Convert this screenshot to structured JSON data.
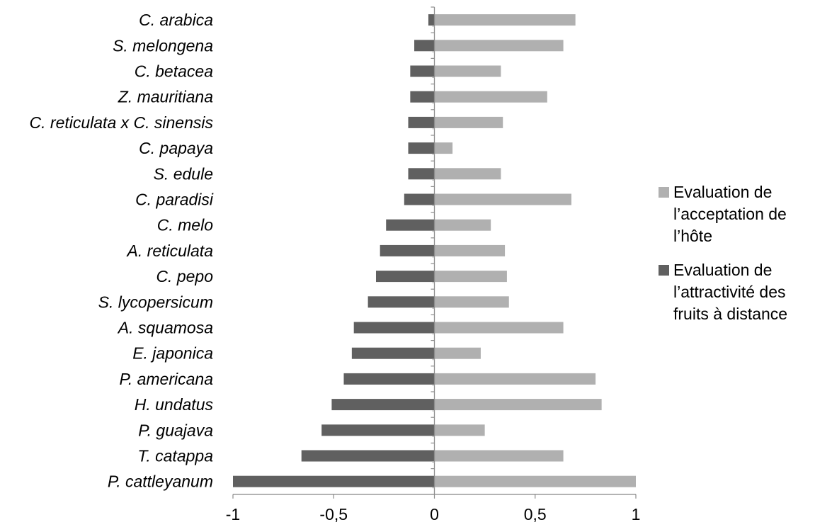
{
  "chart_data": {
    "type": "bar",
    "orientation": "horizontal",
    "categories": [
      "C. arabica",
      "S. melongena",
      "C. betacea",
      "Z. mauritiana",
      "C. reticulata x C. sinensis",
      "C. papaya",
      "S. edule",
      "C. paradisi",
      "C. melo",
      "A. reticulata",
      "C. pepo",
      "S. lycopersicum",
      "A. squamosa",
      "E. japonica",
      "P. americana",
      "H. undatus",
      "P. guajava",
      "T. catappa",
      "P. cattleyanum"
    ],
    "series": [
      {
        "name": "Evaluation de l’acceptation de l’hôte",
        "color": "#b0b0b0",
        "values": [
          0.7,
          0.64,
          0.33,
          0.56,
          0.34,
          0.09,
          0.33,
          0.68,
          0.28,
          0.35,
          0.36,
          0.37,
          0.64,
          0.23,
          0.8,
          0.83,
          0.25,
          0.64,
          1.0
        ]
      },
      {
        "name": "Evaluation de l’attractivité des fruits à distance",
        "color": "#606060",
        "values": [
          -0.03,
          -0.1,
          -0.12,
          -0.12,
          -0.13,
          -0.13,
          -0.13,
          -0.15,
          -0.24,
          -0.27,
          -0.29,
          -0.33,
          -0.4,
          -0.41,
          -0.45,
          -0.51,
          -0.56,
          -0.66,
          -1.0
        ]
      }
    ],
    "x_ticks": [
      "-1",
      "-0,5",
      "0",
      "0,5",
      "1"
    ],
    "xlim": [
      -1,
      1
    ],
    "legend_position": "right",
    "legend": {
      "accept_lines": [
        "Evaluation de",
        "l’acceptation de",
        "l’hôte"
      ],
      "attract_lines": [
        "Evaluation de",
        "l’attractivité des",
        "fruits à distance"
      ]
    }
  }
}
